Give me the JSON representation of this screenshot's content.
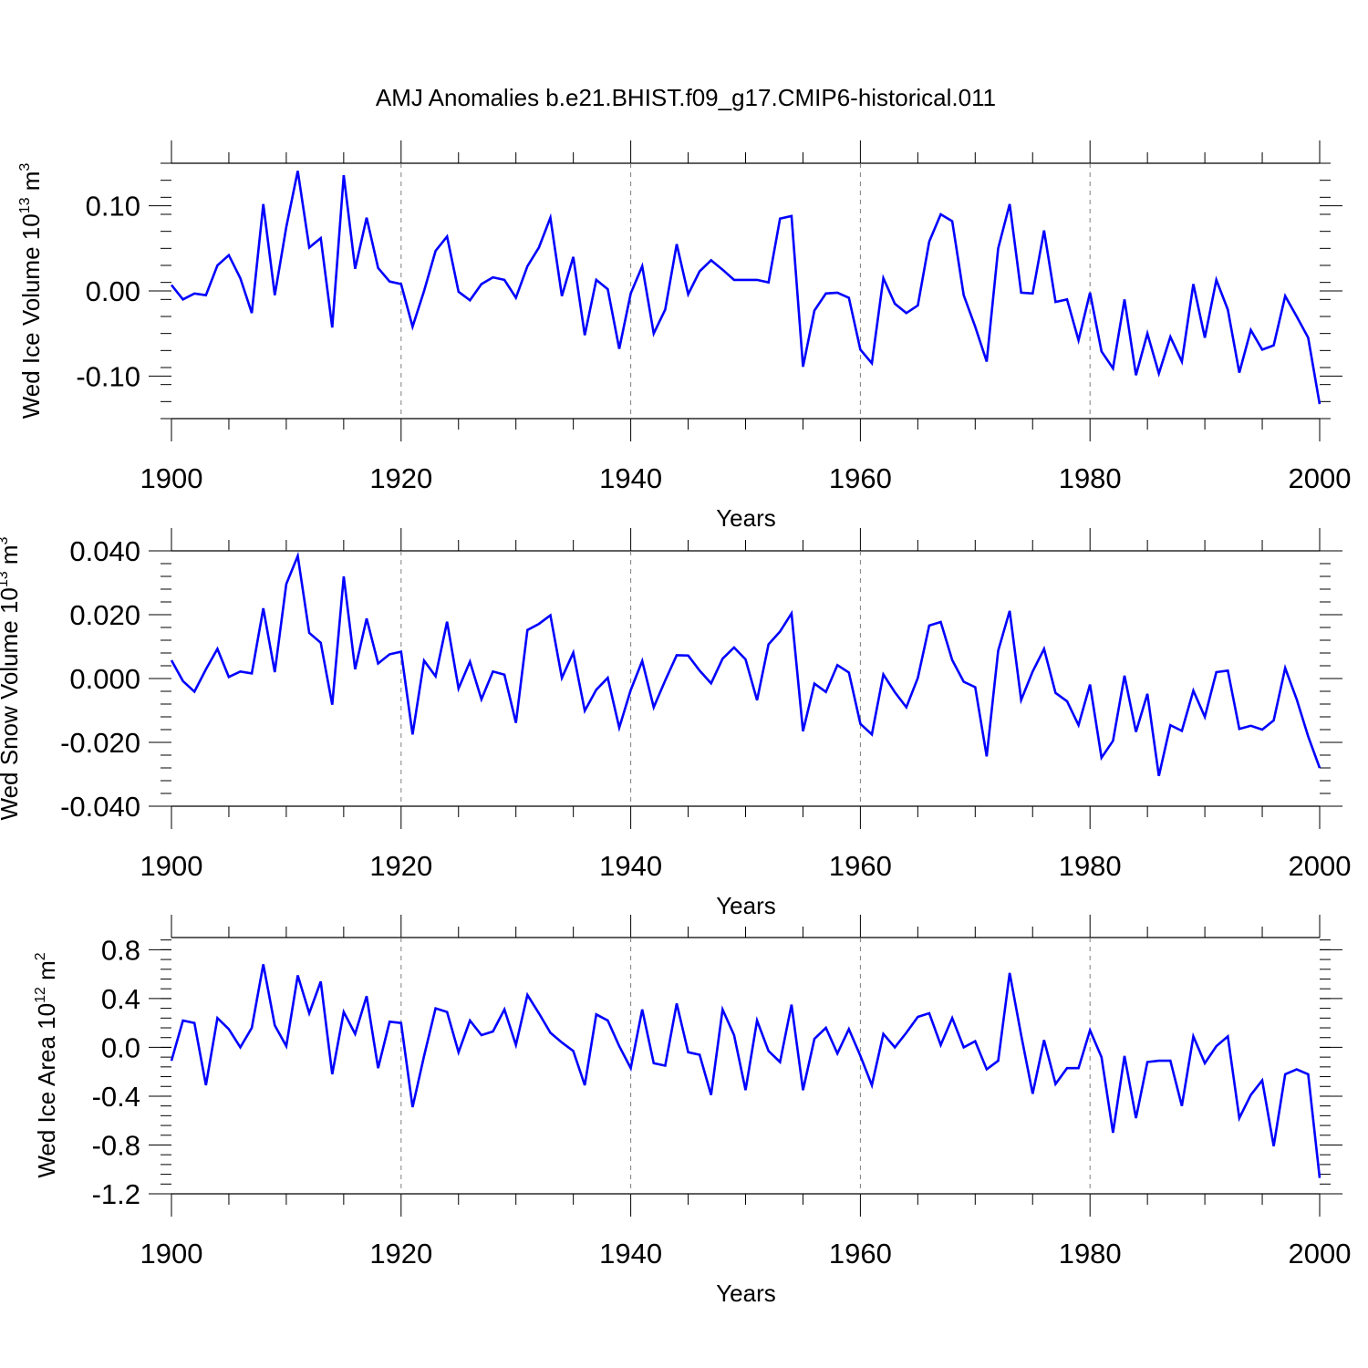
{
  "figure": {
    "title": "AMJ Anomalies b.e21.BHIST.f09_g17.CMIP6-historical.011",
    "line_color": "#0000ff",
    "grid_color": "#808080",
    "axis_color": "#000000"
  },
  "chart_data": [
    {
      "type": "line",
      "title": "",
      "ylabel_parts": {
        "main": "Wed Ice Volume 10",
        "sup": "13",
        "unit": " m",
        "unit_sup": "3"
      },
      "xlabel": "Years",
      "xlim": [
        1900,
        2000
      ],
      "ylim": [
        -0.15,
        0.15
      ],
      "xticks": [
        1900,
        1920,
        1940,
        1960,
        1980,
        2000
      ],
      "xtick_labels": [
        "1900",
        "1920",
        "1940",
        "1960",
        "1980",
        "2000"
      ],
      "yticks": [
        0.1,
        0.0,
        -0.1
      ],
      "ytick_labels": [
        "0.10",
        "0.00",
        "-0.10"
      ],
      "grid_x": [
        1920,
        1940,
        1960,
        1980
      ],
      "series": [
        {
          "name": "Wed Ice Volume",
          "x_start": 1900,
          "values": [
            0.007,
            -0.01,
            -0.003,
            -0.005,
            0.03,
            0.042,
            0.015,
            -0.026,
            0.102,
            -0.005,
            0.075,
            0.141,
            0.051,
            0.062,
            -0.043,
            0.136,
            0.026,
            0.086,
            0.027,
            0.011,
            0.008,
            -0.042,
            0.0,
            0.047,
            0.064,
            -0.001,
            -0.011,
            0.008,
            0.016,
            0.013,
            -0.008,
            0.029,
            0.051,
            0.086,
            -0.006,
            0.04,
            -0.052,
            0.013,
            0.002,
            -0.068,
            -0.003,
            0.029,
            -0.05,
            -0.022,
            0.055,
            -0.004,
            0.023,
            0.036,
            0.025,
            0.013,
            0.013,
            0.013,
            0.01,
            0.085,
            0.088,
            -0.089,
            -0.023,
            -0.003,
            -0.002,
            -0.008,
            -0.069,
            -0.085,
            0.015,
            -0.015,
            -0.026,
            -0.017,
            0.058,
            0.09,
            0.082,
            -0.005,
            -0.042,
            -0.083,
            0.05,
            0.102,
            -0.002,
            -0.003,
            0.071,
            -0.013,
            -0.01,
            -0.058,
            -0.002,
            -0.071,
            -0.091,
            -0.01,
            -0.099,
            -0.05,
            -0.097,
            -0.054,
            -0.083,
            0.008,
            -0.055,
            0.013,
            -0.022,
            -0.096,
            -0.046,
            -0.069,
            -0.064,
            -0.006,
            -0.03,
            -0.055,
            -0.133
          ]
        }
      ]
    },
    {
      "type": "line",
      "title": "",
      "ylabel_parts": {
        "main": "Wed Snow Volume 10",
        "sup": "13",
        "unit": " m",
        "unit_sup": "3"
      },
      "xlabel": "Years",
      "xlim": [
        1900,
        2000
      ],
      "ylim": [
        -0.04,
        0.04
      ],
      "xticks": [
        1900,
        1920,
        1940,
        1960,
        1980,
        2000
      ],
      "xtick_labels": [
        "1900",
        "1920",
        "1940",
        "1960",
        "1980",
        "2000"
      ],
      "yticks": [
        0.04,
        0.02,
        0.0,
        -0.02,
        -0.04
      ],
      "ytick_labels": [
        "0.040",
        "0.020",
        "0.000",
        "-0.020",
        "-0.040"
      ],
      "grid_x": [
        1920,
        1940,
        1960
      ],
      "series": [
        {
          "name": "Wed Snow Volume",
          "x_start": 1900,
          "values": [
            0.0057,
            -0.0008,
            -0.0041,
            0.0029,
            0.0093,
            0.0005,
            0.0022,
            0.0016,
            0.022,
            0.002,
            0.0296,
            0.0384,
            0.0143,
            0.0112,
            -0.0082,
            0.032,
            0.0029,
            0.0188,
            0.0047,
            0.0076,
            0.0084,
            -0.0175,
            0.0056,
            0.0007,
            0.0178,
            -0.0031,
            0.0053,
            -0.0065,
            0.0022,
            0.0012,
            -0.0139,
            0.0152,
            0.0171,
            0.0198,
            0.0002,
            0.0081,
            -0.0101,
            -0.0035,
            0.0002,
            -0.0154,
            -0.0036,
            0.0055,
            -0.009,
            -0.0006,
            0.0073,
            0.0072,
            0.0025,
            -0.0015,
            0.0062,
            0.0097,
            0.006,
            -0.0068,
            0.0107,
            0.0147,
            0.0204,
            -0.0165,
            -0.0016,
            -0.0042,
            0.0042,
            0.0019,
            -0.0142,
            -0.0175,
            0.0013,
            -0.0043,
            -0.009,
            0.0002,
            0.0166,
            0.0177,
            0.0058,
            -0.001,
            -0.0027,
            -0.0244,
            0.0087,
            0.0212,
            -0.0067,
            0.0022,
            0.0093,
            -0.0045,
            -0.0071,
            -0.0146,
            -0.0019,
            -0.0248,
            -0.0195,
            0.0009,
            -0.0167,
            -0.0048,
            -0.0305,
            -0.0146,
            -0.0164,
            -0.0038,
            -0.012,
            0.002,
            0.0025,
            -0.0158,
            -0.0148,
            -0.016,
            -0.0131,
            0.0033,
            -0.0065,
            -0.0181,
            -0.028
          ]
        }
      ]
    },
    {
      "type": "line",
      "title": "",
      "ylabel_parts": {
        "main": "Wed Ice Area 10",
        "sup": "12",
        "unit": " m",
        "unit_sup": "2"
      },
      "xlabel": "Years",
      "xlim": [
        1900,
        2000
      ],
      "ylim": [
        -1.2,
        0.9
      ],
      "xticks": [
        1900,
        1920,
        1940,
        1960,
        1980,
        2000
      ],
      "xtick_labels": [
        "1900",
        "1920",
        "1940",
        "1960",
        "1980",
        "2000"
      ],
      "yticks": [
        0.8,
        0.4,
        0.0,
        -0.4,
        -0.8,
        -1.2
      ],
      "ytick_labels": [
        "0.8",
        "0.4",
        "0.0",
        "-0.4",
        "-0.8",
        "-1.2"
      ],
      "grid_x": [
        1920,
        1940,
        1960,
        1980
      ],
      "series": [
        {
          "name": "Wed Ice Area",
          "x_start": 1900,
          "values": [
            -0.11,
            0.22,
            0.2,
            -0.31,
            0.24,
            0.15,
            0.0,
            0.16,
            0.68,
            0.18,
            0.01,
            0.59,
            0.28,
            0.54,
            -0.22,
            0.29,
            0.11,
            0.42,
            -0.17,
            0.21,
            0.2,
            -0.49,
            -0.07,
            0.32,
            0.29,
            -0.04,
            0.22,
            0.1,
            0.13,
            0.31,
            0.02,
            0.43,
            0.28,
            0.12,
            0.04,
            -0.03,
            -0.31,
            0.27,
            0.22,
            0.01,
            -0.17,
            0.31,
            -0.13,
            -0.15,
            0.36,
            -0.04,
            -0.06,
            -0.39,
            0.31,
            0.1,
            -0.35,
            0.22,
            -0.03,
            -0.12,
            0.35,
            -0.35,
            0.07,
            0.16,
            -0.05,
            0.15,
            -0.07,
            -0.31,
            0.11,
            0.0,
            0.12,
            0.25,
            0.28,
            0.02,
            0.24,
            0.0,
            0.05,
            -0.18,
            -0.11,
            0.61,
            0.1,
            -0.38,
            0.06,
            -0.3,
            -0.17,
            -0.17,
            0.14,
            -0.08,
            -0.7,
            -0.07,
            -0.58,
            -0.12,
            -0.11,
            -0.11,
            -0.48,
            0.09,
            -0.13,
            0.01,
            0.09,
            -0.58,
            -0.39,
            -0.27,
            -0.81,
            -0.22,
            -0.18,
            -0.22,
            -1.07
          ]
        }
      ]
    }
  ]
}
